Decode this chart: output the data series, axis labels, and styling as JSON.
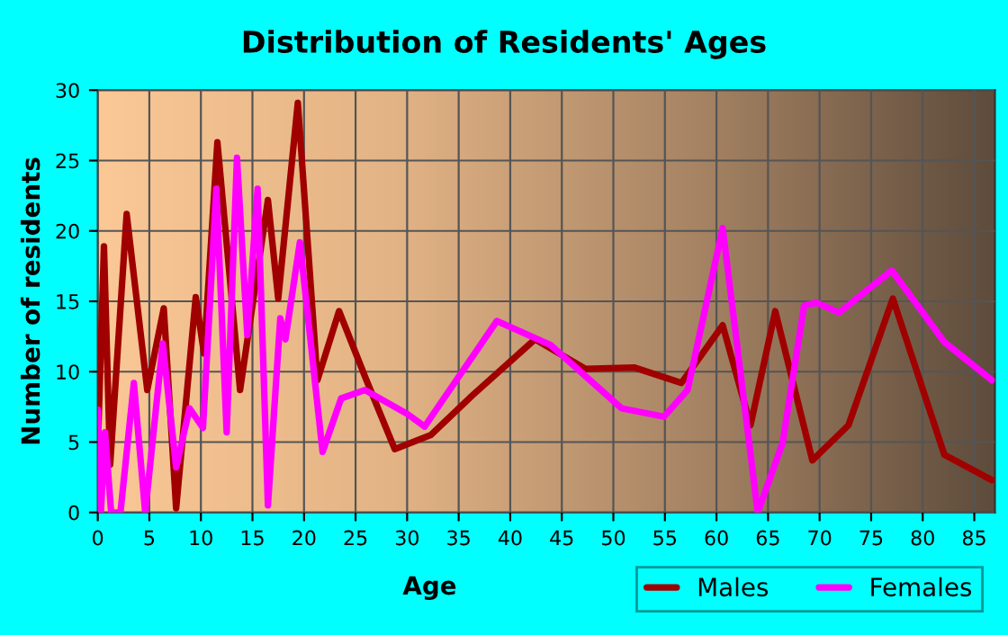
{
  "chart_data": {
    "type": "line",
    "title": "Distribution of Residents' Ages",
    "xlabel": "Age",
    "ylabel": "Number of residents",
    "xlim": [
      0,
      87
    ],
    "xticks": [
      0,
      5,
      10,
      15,
      20,
      25,
      30,
      35,
      40,
      45,
      50,
      55,
      60,
      65,
      70,
      75,
      80,
      85
    ],
    "ylim": [
      0,
      30
    ],
    "yticks": [
      0,
      5,
      10,
      15,
      20,
      25,
      30
    ],
    "grid": true,
    "legend": "bottom right",
    "series": [
      {
        "name": "Males",
        "color": "#a00000",
        "x": [
          0,
          0.6,
          1.2,
          2.8,
          4.8,
          6.4,
          7.6,
          9.5,
          10.3,
          11.6,
          13.8,
          16.5,
          17.5,
          19.4,
          21.3,
          23.4,
          26,
          28.8,
          32.3,
          36.3,
          42.4,
          47.3,
          52.0,
          56.6,
          60.6,
          63.3,
          65.7,
          69.3,
          72.8,
          77.1,
          82.1,
          86.7
        ],
        "values": [
          4.5,
          18.9,
          3.4,
          21.2,
          8.7,
          14.5,
          0.3,
          15.3,
          11.3,
          26.3,
          8.7,
          22.2,
          15.2,
          29.1,
          9.4,
          14.3,
          9.5,
          4.5,
          5.5,
          8.3,
          12.3,
          10.2,
          10.3,
          9.2,
          13.3,
          6.2,
          14.3,
          3.7,
          6.2,
          15.2,
          4.1,
          2.3
        ]
      },
      {
        "name": "Females",
        "color": "#ff00ff",
        "x": [
          0,
          0.3,
          0.7,
          1.3,
          2.2,
          3.5,
          4.6,
          6.3,
          7.6,
          8.9,
          10.2,
          11.5,
          12.5,
          13.5,
          14.5,
          15.5,
          16.5,
          17.7,
          18.2,
          19.6,
          21.8,
          23.6,
          25.9,
          30.0,
          31.7,
          38.7,
          43.9,
          50.8,
          54.9,
          57.2,
          60.6,
          64.0,
          66.4,
          68.5,
          69.7,
          71.9,
          77.0,
          82.1,
          86.7
        ],
        "values": [
          7.3,
          0,
          5.7,
          0,
          0,
          9.2,
          0,
          12.0,
          3.2,
          7.4,
          6.0,
          23,
          5.7,
          25.2,
          12.6,
          23,
          0.5,
          13.8,
          12.3,
          19.2,
          4.3,
          8.1,
          8.7,
          7.0,
          6.1,
          13.6,
          11.9,
          7.4,
          6.8,
          8.7,
          20.2,
          0,
          4.9,
          14.7,
          14.9,
          14.2,
          17.2,
          12.1,
          9.4
        ]
      }
    ]
  }
}
